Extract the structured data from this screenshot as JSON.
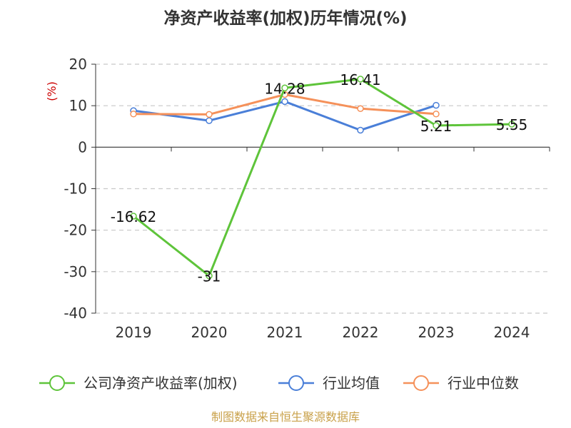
{
  "chart_data": {
    "type": "line",
    "title": "净资产收益率(加权)历年情况(%)",
    "ylabel": "(%)",
    "xlabel": "",
    "categories": [
      "2019",
      "2020",
      "2021",
      "2022",
      "2023",
      "2024"
    ],
    "ylim": [
      -40,
      20
    ],
    "yticks": [
      20,
      10,
      0,
      -10,
      -20,
      -30,
      -40
    ],
    "grid": true,
    "legend_position": "bottom",
    "series": [
      {
        "name": "公司净资产收益率(加权)",
        "color": "#5ec43a",
        "values": [
          -16.62,
          -31,
          14.28,
          16.41,
          5.21,
          5.55
        ],
        "labels": [
          "-16.62",
          "-31",
          "14.28",
          "16.41",
          "5.21",
          "5.55"
        ]
      },
      {
        "name": "行业均值",
        "color": "#4a7fd8",
        "values": [
          8.8,
          6.4,
          11.0,
          4.1,
          10.1,
          null
        ],
        "labels": []
      },
      {
        "name": "行业中位数",
        "color": "#f5915a",
        "values": [
          8.0,
          7.9,
          12.7,
          9.3,
          8.0,
          null
        ],
        "labels": []
      }
    ],
    "source": "制图数据来自恒生聚源数据库"
  }
}
